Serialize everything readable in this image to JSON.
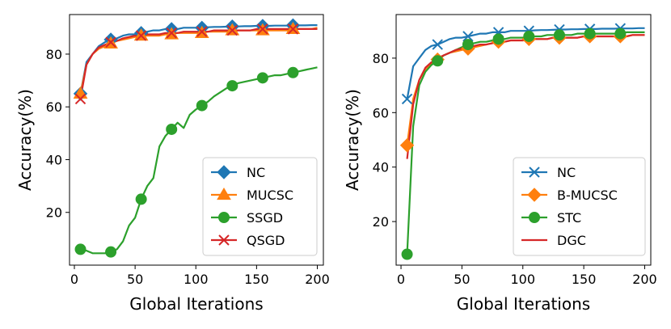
{
  "chart_data": [
    {
      "type": "line",
      "xlabel": "Global Iterations",
      "ylabel": "Accuracy(%)",
      "xlim": [
        -4,
        205
      ],
      "ylim": [
        0,
        95
      ],
      "xticks": [
        0,
        50,
        100,
        150,
        200
      ],
      "yticks": [
        20,
        40,
        60,
        80
      ],
      "legend_position": "bottom-right",
      "x": [
        5,
        10,
        15,
        20,
        25,
        30,
        35,
        40,
        45,
        50,
        55,
        60,
        65,
        70,
        75,
        80,
        85,
        90,
        95,
        100,
        105,
        110,
        115,
        120,
        125,
        130,
        135,
        140,
        145,
        150,
        155,
        160,
        165,
        170,
        175,
        180,
        185,
        190,
        195,
        200
      ],
      "marker_x": [
        5,
        30,
        55,
        80,
        105,
        130,
        155,
        180
      ],
      "series": [
        {
          "name": "NC",
          "color": "#1f77b4",
          "marker": "diamond",
          "values": [
            65,
            77,
            80,
            83,
            84.5,
            85.5,
            86,
            87,
            87.5,
            87.5,
            88,
            88.5,
            89,
            89,
            89.5,
            89.5,
            89.5,
            90,
            90,
            90,
            90,
            90.2,
            90.3,
            90.3,
            90.4,
            90.5,
            90.5,
            90.6,
            90.6,
            90.7,
            90.7,
            90.7,
            90.8,
            90.8,
            90.8,
            90.9,
            90.9,
            90.9,
            91,
            91
          ]
        },
        {
          "name": "MUCSC",
          "color": "#ff7f0e",
          "marker": "triangle",
          "values": [
            65,
            76,
            80,
            82,
            83,
            84,
            85,
            85.5,
            86,
            86.5,
            87,
            87,
            87,
            87,
            87.5,
            87.5,
            88,
            88,
            88,
            88,
            88,
            88.5,
            88.5,
            88.5,
            88.5,
            89,
            89,
            89,
            89,
            89,
            89,
            89,
            89,
            89,
            89,
            89.5,
            89.5,
            89.5,
            89.5,
            90
          ]
        },
        {
          "name": "SSGD",
          "color": "#2ca02c",
          "marker": "circle",
          "values": [
            6,
            5.5,
            4.5,
            4.5,
            4.5,
            5,
            6,
            9,
            15,
            18,
            25,
            30,
            33,
            45,
            49,
            51.5,
            54,
            52,
            57,
            59,
            60.5,
            62,
            64,
            65.5,
            67,
            68,
            69,
            69.5,
            70,
            70.5,
            71,
            71.5,
            72,
            72,
            72.5,
            73,
            73.5,
            74,
            74.5,
            75
          ]
        },
        {
          "name": "QSGD",
          "color": "#d62728",
          "marker": "x",
          "values": [
            63,
            76,
            80,
            82.5,
            83.5,
            84.5,
            85,
            86,
            86.5,
            87,
            87,
            87.5,
            87.5,
            87.5,
            88,
            88,
            88,
            88.5,
            88.5,
            88.5,
            88.5,
            88.5,
            89,
            89,
            89,
            89,
            89,
            89,
            89,
            89.5,
            89.5,
            89.5,
            89.5,
            89.5,
            89.5,
            89.5,
            89.5,
            89.5,
            89.5,
            89.5
          ]
        }
      ]
    },
    {
      "type": "line",
      "xlabel": "Global Iterations",
      "ylabel": "Accuracy(%)",
      "xlim": [
        -4,
        205
      ],
      "ylim": [
        4,
        96
      ],
      "xticks": [
        0,
        50,
        100,
        150,
        200
      ],
      "yticks": [
        20,
        40,
        60,
        80
      ],
      "legend_position": "bottom-right",
      "x": [
        5,
        10,
        15,
        20,
        25,
        30,
        35,
        40,
        45,
        50,
        55,
        60,
        65,
        70,
        75,
        80,
        85,
        90,
        95,
        100,
        105,
        110,
        115,
        120,
        125,
        130,
        135,
        140,
        145,
        150,
        155,
        160,
        165,
        170,
        175,
        180,
        185,
        190,
        195,
        200
      ],
      "marker_x": [
        5,
        30,
        55,
        80,
        105,
        130,
        155,
        180
      ],
      "series": [
        {
          "name": "NC",
          "color": "#1f77b4",
          "marker": "x",
          "values": [
            65,
            77,
            80,
            83,
            84.5,
            85,
            86,
            87,
            87.5,
            87.5,
            88,
            88.5,
            89,
            89,
            89.5,
            89.5,
            89.5,
            90,
            90,
            90,
            90,
            90.2,
            90.3,
            90.3,
            90.4,
            90.5,
            90.5,
            90.6,
            90.6,
            90.7,
            90.7,
            90.7,
            90.8,
            90.8,
            90.8,
            90.9,
            90.9,
            90.9,
            91,
            91
          ]
        },
        {
          "name": "B-MUCSC",
          "color": "#ff7f0e",
          "marker": "diamond",
          "values": [
            48,
            65,
            72,
            76,
            78,
            79.5,
            81,
            82,
            82.5,
            83,
            83.5,
            84,
            84.5,
            85,
            85.5,
            86,
            86,
            86.5,
            86.5,
            86.5,
            87,
            87,
            87,
            87,
            87.5,
            87.5,
            87.5,
            87.5,
            87.5,
            88,
            88,
            88,
            88,
            88,
            88,
            88,
            88,
            88.5,
            88.5,
            88.5
          ]
        },
        {
          "name": "STC",
          "color": "#2ca02c",
          "marker": "circle",
          "values": [
            8,
            55,
            70,
            75,
            77.5,
            79,
            81,
            82,
            83,
            84,
            85,
            85.5,
            86,
            86,
            86.5,
            87,
            87,
            87.5,
            87.5,
            87.5,
            88,
            88,
            88,
            88.5,
            88.5,
            88.5,
            88.5,
            88.5,
            89,
            89,
            89,
            89,
            89,
            89,
            89,
            89,
            89.5,
            89.5,
            89.5,
            89.5
          ]
        },
        {
          "name": "DGC",
          "color": "#d62728",
          "marker": "none",
          "values": [
            43,
            63,
            72,
            76.5,
            78.5,
            80,
            81,
            82,
            83,
            83.5,
            84,
            84.5,
            85,
            85,
            85.5,
            86,
            86,
            86.5,
            86.5,
            86.5,
            87,
            87,
            87,
            87,
            87.5,
            87.5,
            87.5,
            87.5,
            87.5,
            88,
            88,
            88,
            88,
            88,
            88,
            88,
            88,
            88.5,
            88.5,
            88.5
          ]
        }
      ]
    }
  ]
}
